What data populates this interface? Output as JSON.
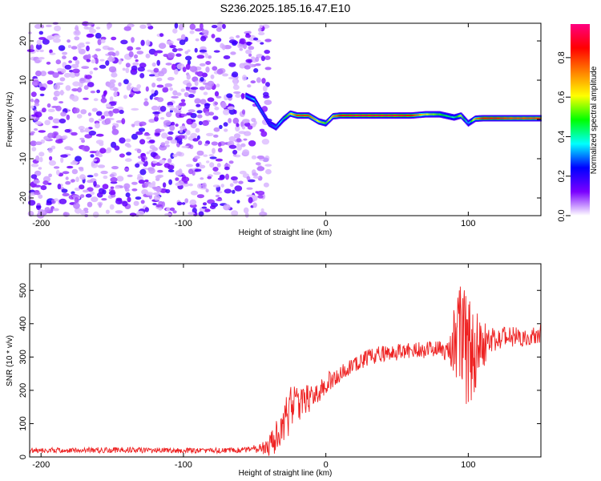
{
  "title": "S236.2025.185.16.47.E10",
  "colors": {
    "snr_line": "#ee2222",
    "axis": "#000000",
    "background": "#ffffff"
  },
  "chart_data": [
    {
      "type": "heatmap",
      "title": "S236.2025.185.16.47.E10",
      "xlabel": "Height of straight line (km)",
      "ylabel": "Frequency (Hz)",
      "xlim": [
        -208,
        151
      ],
      "ylim": [
        -24.5,
        24.5
      ],
      "xticks": [
        -200,
        -100,
        0,
        100
      ],
      "xtick_labels": [
        "-200",
        "-100",
        "0",
        "100"
      ],
      "yticks": [
        -20,
        -10,
        0,
        10,
        20
      ],
      "ytick_labels": [
        "-20",
        "-10",
        "0",
        "10",
        "20"
      ],
      "colorbar": {
        "label": "Normalized spectral amplitude",
        "range": [
          0,
          0.97
        ],
        "ticks": [
          0.0,
          0.2,
          0.4,
          0.6,
          0.8
        ],
        "tick_labels": [
          "0.0",
          "0.2",
          "0.4",
          "0.6",
          "0.8"
        ],
        "colormap": [
          "#ffffff",
          "#7a00ff",
          "#0000ff",
          "#00ffff",
          "#00ff00",
          "#ffff00",
          "#ff8000",
          "#ff0000",
          "#ff0080"
        ]
      },
      "noise_region": {
        "x": [
          -208,
          -40
        ],
        "y": [
          -24.5,
          24.5
        ],
        "level": [
          0.03,
          0.2
        ]
      },
      "ridge": {
        "x": [
          -56,
          -50,
          -45,
          -40,
          -35,
          -30,
          -25,
          -20,
          -12,
          -5,
          0,
          5,
          10,
          20,
          30,
          40,
          50,
          60,
          70,
          80,
          90,
          95,
          100,
          105,
          110,
          120,
          130,
          140,
          151
        ],
        "freq": [
          6,
          5,
          2,
          -1,
          -2,
          0,
          1.5,
          1,
          1,
          -0.5,
          -1,
          0.8,
          1,
          1,
          1,
          1,
          1,
          1,
          1.3,
          1.3,
          0.5,
          1,
          -1,
          0.2,
          0.3,
          0.3,
          0.3,
          0.3,
          0.3
        ],
        "amp": [
          0.3,
          0.35,
          0.3,
          0.25,
          0.3,
          0.4,
          0.6,
          0.8,
          0.8,
          0.6,
          0.5,
          0.7,
          0.85,
          0.9,
          0.9,
          0.9,
          0.9,
          0.85,
          0.6,
          0.5,
          0.4,
          0.6,
          0.3,
          0.7,
          0.85,
          0.85,
          0.8,
          0.8,
          0.8
        ]
      }
    },
    {
      "type": "line",
      "xlabel": "Height of straight line (km)",
      "ylabel": "SNR (10 * v/v)",
      "xlim": [
        -208,
        151
      ],
      "ylim": [
        0,
        580
      ],
      "xticks": [
        -200,
        -100,
        0,
        100
      ],
      "xtick_labels": [
        "-200",
        "-100",
        "0",
        "100"
      ],
      "yticks": [
        0,
        100,
        200,
        300,
        400,
        500
      ],
      "ytick_labels": [
        "0",
        "100",
        "200",
        "300",
        "400",
        "500"
      ],
      "series": [
        {
          "x": [
            -208,
            -180,
            -150,
            -120,
            -90,
            -60,
            -45,
            -38,
            -30,
            -25,
            -20,
            -15,
            -10,
            -5,
            0,
            10,
            20,
            30,
            40,
            50,
            60,
            70,
            80,
            88,
            92,
            96,
            100,
            104,
            108,
            115,
            125,
            135,
            145,
            151
          ],
          "y": [
            20,
            20,
            21,
            20,
            19,
            20,
            25,
            40,
            100,
            140,
            160,
            170,
            180,
            200,
            220,
            250,
            280,
            300,
            310,
            315,
            320,
            320,
            330,
            330,
            360,
            340,
            300,
            310,
            330,
            350,
            360,
            360,
            365,
            370
          ],
          "spread": [
            8,
            8,
            9,
            8,
            8,
            8,
            15,
            40,
            60,
            70,
            55,
            45,
            40,
            35,
            30,
            28,
            25,
            25,
            25,
            25,
            25,
            25,
            28,
            60,
            140,
            180,
            200,
            150,
            90,
            40,
            30,
            30,
            30,
            30
          ]
        }
      ]
    }
  ]
}
